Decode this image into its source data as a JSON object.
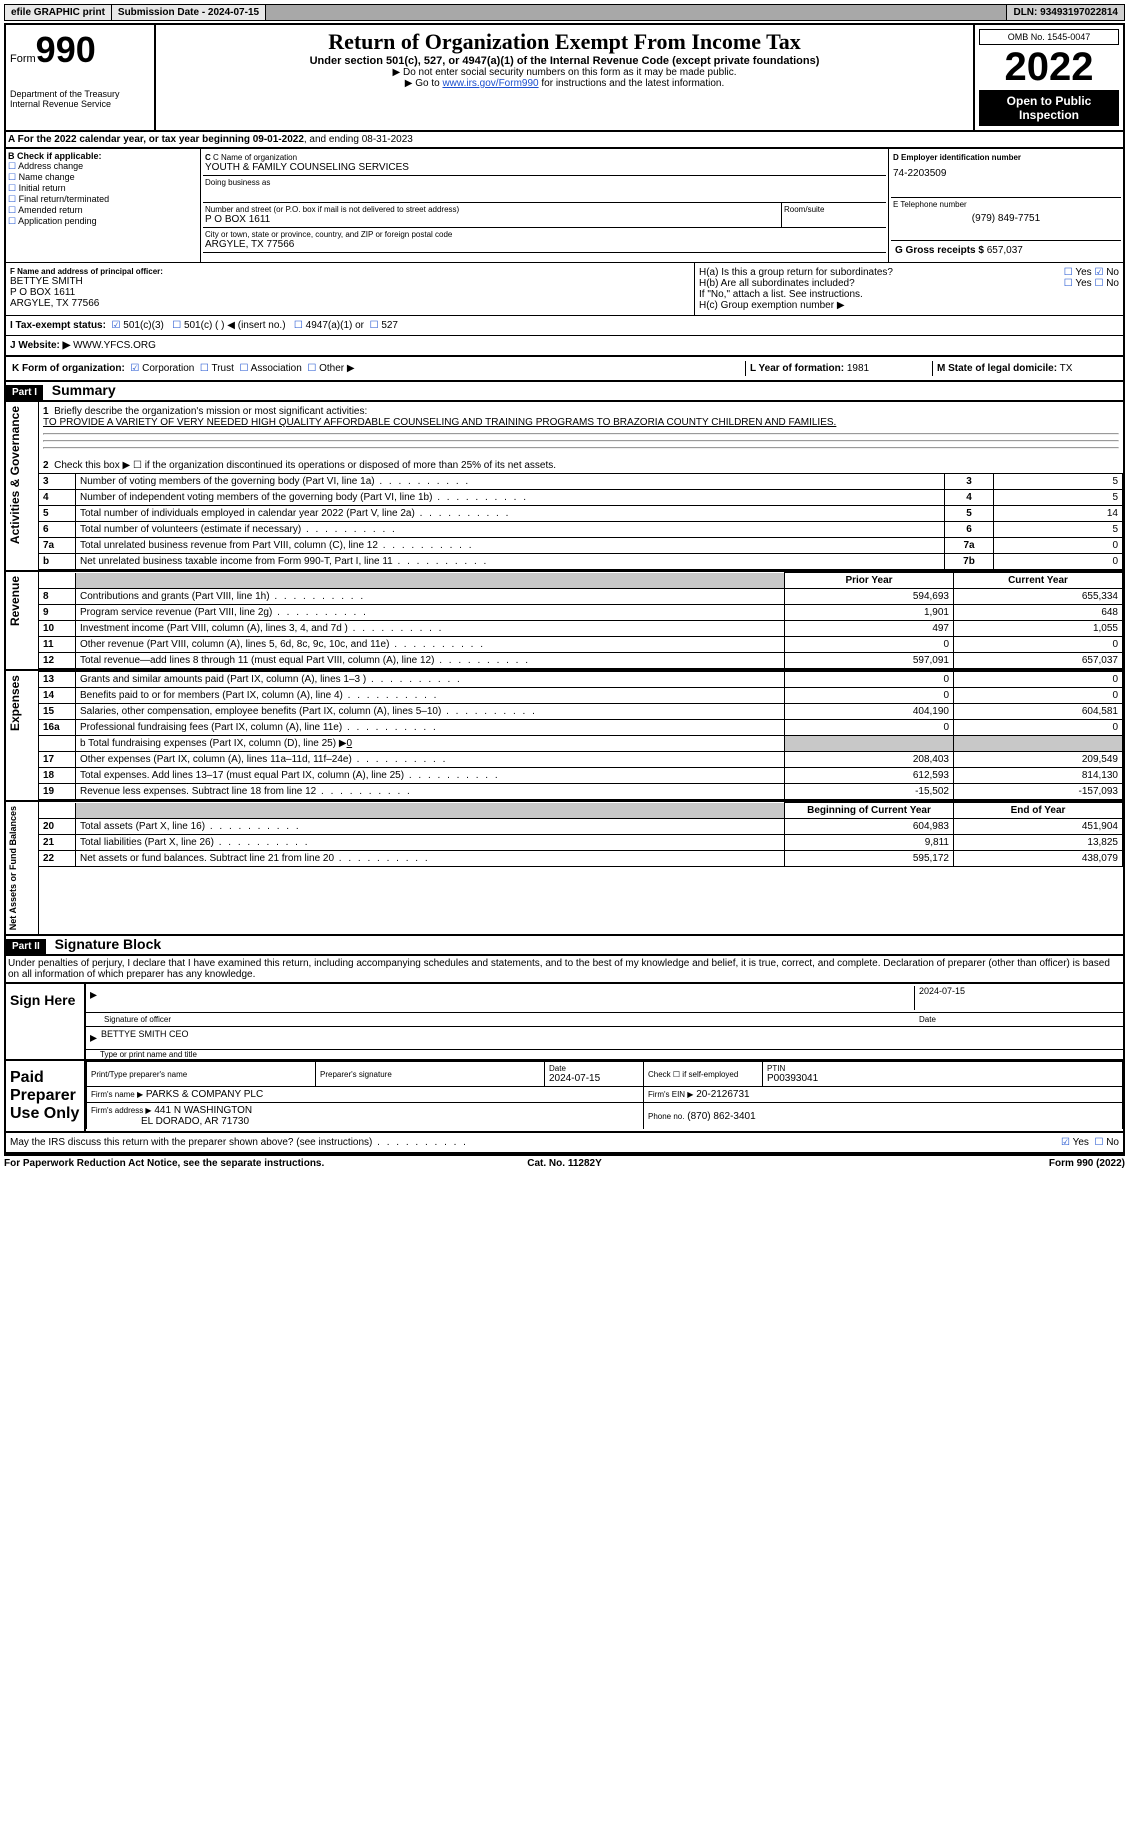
{
  "topbar": {
    "efile": "efile GRAPHIC print",
    "submission": "Submission Date - 2024-07-15",
    "dln": "DLN: 93493197022814"
  },
  "form_label": "Form",
  "form_num": "990",
  "dept": "Department of the Treasury",
  "irs": "Internal Revenue Service",
  "title": "Return of Organization Exempt From Income Tax",
  "subtitle": "Under section 501(c), 527, or 4947(a)(1) of the Internal Revenue Code (except private foundations)",
  "note1": "▶ Do not enter social security numbers on this form as it may be made public.",
  "note2_pre": "▶ Go to ",
  "note2_link": "www.irs.gov/Form990",
  "note2_post": " for instructions and the latest information.",
  "omb": "OMB No. 1545-0047",
  "year": "2022",
  "open": "Open to Public Inspection",
  "period": {
    "a": "A For the 2022 calendar year, or tax year beginning 09-01-2022",
    "b": ", and ending 08-31-2023"
  },
  "b_label": "B Check if applicable:",
  "b_opts": [
    "Address change",
    "Name change",
    "Initial return",
    "Final return/terminated",
    "Amended return",
    "Application pending"
  ],
  "c_label": "C Name of organization",
  "org_name": "YOUTH & FAMILY COUNSELING SERVICES",
  "dba_label": "Doing business as",
  "addr_label": "Number and street (or P.O. box if mail is not delivered to street address)",
  "room_label": "Room/suite",
  "addr": "P O BOX 1611",
  "city_label": "City or town, state or province, country, and ZIP or foreign postal code",
  "city": "ARGYLE, TX   77566",
  "d_label": "D Employer identification number",
  "ein": "74-2203509",
  "e_label": "E Telephone number",
  "phone": "(979) 849-7751",
  "g_label": "G Gross receipts $",
  "g_val": "657,037",
  "f_label": "F Name and address of principal officer:",
  "officer_name": "BETTYE SMITH",
  "officer_addr1": "P O BOX 1611",
  "officer_addr2": "ARGYLE, TX   77566",
  "ha": "H(a) Is this a group return for subordinates?",
  "hb": "H(b) Are all subordinates included?",
  "hnote": "If \"No,\" attach a list. See instructions.",
  "hc": "H(c) Group exemption number ▶",
  "yes": "Yes",
  "no": "No",
  "i_label": "I   Tax-exempt status:",
  "i_opts": [
    "501(c)(3)",
    "501(c) (  ) ◀ (insert no.)",
    "4947(a)(1) or",
    "527"
  ],
  "j_label": "J   Website: ▶",
  "website": "WWW.YFCS.ORG",
  "k_label": "K Form of organization:",
  "k_opts": [
    "Corporation",
    "Trust",
    "Association",
    "Other ▶"
  ],
  "l_label": "L Year of formation:",
  "l_val": "1981",
  "m_label": "M State of legal domicile:",
  "m_val": "TX",
  "part1": "Part I",
  "part1_title": "Summary",
  "side_act": "Activities & Governance",
  "side_rev": "Revenue",
  "side_exp": "Expenses",
  "side_net": "Net Assets or Fund Balances",
  "q1": "Briefly describe the organization's mission or most significant activities:",
  "mission": "TO PROVIDE A VARIETY OF VERY NEEDED HIGH QUALITY AFFORDABLE COUNSELING AND TRAINING PROGRAMS TO BRAZORIA COUNTY CHILDREN AND FAMILIES.",
  "q2": "Check this box ▶ ☐ if the organization discontinued its operations or disposed of more than 25% of its net assets.",
  "lines_gov": [
    {
      "n": "3",
      "t": "Number of voting members of the governing body (Part VI, line 1a)",
      "box": "3",
      "v": "5"
    },
    {
      "n": "4",
      "t": "Number of independent voting members of the governing body (Part VI, line 1b)",
      "box": "4",
      "v": "5"
    },
    {
      "n": "5",
      "t": "Total number of individuals employed in calendar year 2022 (Part V, line 2a)",
      "box": "5",
      "v": "14"
    },
    {
      "n": "6",
      "t": "Total number of volunteers (estimate if necessary)",
      "box": "6",
      "v": "5"
    },
    {
      "n": "7a",
      "t": "Total unrelated business revenue from Part VIII, column (C), line 12",
      "box": "7a",
      "v": "0"
    },
    {
      "n": "b",
      "t": "Net unrelated business taxable income from Form 990-T, Part I, line 11",
      "box": "7b",
      "v": "0"
    }
  ],
  "hdr_prior": "Prior Year",
  "hdr_curr": "Current Year",
  "lines_rev": [
    {
      "n": "8",
      "t": "Contributions and grants (Part VIII, line 1h)",
      "p": "594,693",
      "c": "655,334"
    },
    {
      "n": "9",
      "t": "Program service revenue (Part VIII, line 2g)",
      "p": "1,901",
      "c": "648"
    },
    {
      "n": "10",
      "t": "Investment income (Part VIII, column (A), lines 3, 4, and 7d )",
      "p": "497",
      "c": "1,055"
    },
    {
      "n": "11",
      "t": "Other revenue (Part VIII, column (A), lines 5, 6d, 8c, 9c, 10c, and 11e)",
      "p": "0",
      "c": "0"
    },
    {
      "n": "12",
      "t": "Total revenue—add lines 8 through 11 (must equal Part VIII, column (A), line 12)",
      "p": "597,091",
      "c": "657,037"
    }
  ],
  "lines_exp": [
    {
      "n": "13",
      "t": "Grants and similar amounts paid (Part IX, column (A), lines 1–3 )",
      "p": "0",
      "c": "0"
    },
    {
      "n": "14",
      "t": "Benefits paid to or for members (Part IX, column (A), line 4)",
      "p": "0",
      "c": "0"
    },
    {
      "n": "15",
      "t": "Salaries, other compensation, employee benefits (Part IX, column (A), lines 5–10)",
      "p": "404,190",
      "c": "604,581"
    },
    {
      "n": "16a",
      "t": "Professional fundraising fees (Part IX, column (A), line 11e)",
      "p": "0",
      "c": "0"
    }
  ],
  "line16b_pre": "b   Total fundraising expenses (Part IX, column (D), line 25) ▶",
  "line16b_val": "0",
  "lines_exp2": [
    {
      "n": "17",
      "t": "Other expenses (Part IX, column (A), lines 11a–11d, 11f–24e)",
      "p": "208,403",
      "c": "209,549"
    },
    {
      "n": "18",
      "t": "Total expenses. Add lines 13–17 (must equal Part IX, column (A), line 25)",
      "p": "612,593",
      "c": "814,130"
    },
    {
      "n": "19",
      "t": "Revenue less expenses. Subtract line 18 from line 12",
      "p": "-15,502",
      "c": "-157,093"
    }
  ],
  "hdr_beg": "Beginning of Current Year",
  "hdr_end": "End of Year",
  "lines_net": [
    {
      "n": "20",
      "t": "Total assets (Part X, line 16)",
      "p": "604,983",
      "c": "451,904"
    },
    {
      "n": "21",
      "t": "Total liabilities (Part X, line 26)",
      "p": "9,811",
      "c": "13,825"
    },
    {
      "n": "22",
      "t": "Net assets or fund balances. Subtract line 21 from line 20",
      "p": "595,172",
      "c": "438,079"
    }
  ],
  "part2": "Part II",
  "part2_title": "Signature Block",
  "penalty": "Under penalties of perjury, I declare that I have examined this return, including accompanying schedules and statements, and to the best of my knowledge and belief, it is true, correct, and complete. Declaration of preparer (other than officer) is based on all information of which preparer has any knowledge.",
  "sign_here": "Sign Here",
  "sig_officer": "Signature of officer",
  "sig_date": "2024-07-15",
  "date_lbl": "Date",
  "sig_name": "BETTYE SMITH  CEO",
  "sig_type": "Type or print name and title",
  "paid_prep": "Paid Preparer Use Only",
  "prep_name_lbl": "Print/Type preparer's name",
  "prep_sig_lbl": "Preparer's signature",
  "prep_date": "2024-07-15",
  "check_self": "Check ☐ if self-employed",
  "ptin_lbl": "PTIN",
  "ptin": "P00393041",
  "firm_name_lbl": "Firm's name     ▶",
  "firm_name": "PARKS & COMPANY PLC",
  "firm_ein_lbl": "Firm's EIN ▶",
  "firm_ein": "20-2126731",
  "firm_addr_lbl": "Firm's address ▶",
  "firm_addr1": "441 N WASHINGTON",
  "firm_addr2": "EL DORADO, AR   71730",
  "firm_phone_lbl": "Phone no.",
  "firm_phone": "(870) 862-3401",
  "discuss": "May the IRS discuss this return with the preparer shown above? (see instructions)",
  "paperwork": "For Paperwork Reduction Act Notice, see the separate instructions.",
  "catno": "Cat. No. 11282Y",
  "formfoot": "Form 990 (2022)"
}
